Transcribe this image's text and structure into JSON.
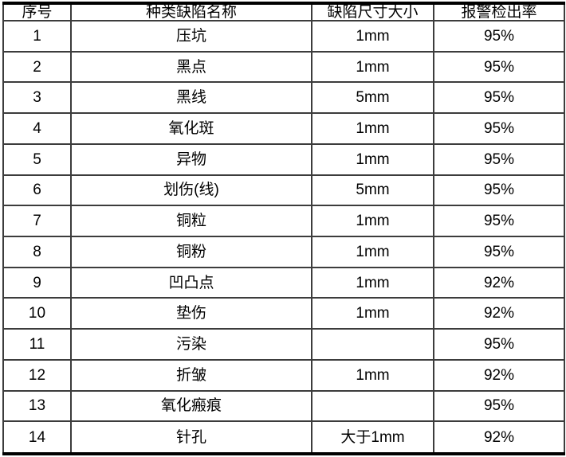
{
  "table": {
    "title": "defect-detection-rate-table",
    "headers": [
      "序号",
      "种类缺陷名称",
      "缺陷尺寸大小",
      "报警检出率"
    ],
    "rows": [
      {
        "no": "1",
        "name": "压坑",
        "size": "1mm",
        "rate": "95%"
      },
      {
        "no": "2",
        "name": "黑点",
        "size": "1mm",
        "rate": "95%"
      },
      {
        "no": "3",
        "name": "黑线",
        "size": "5mm",
        "rate": "95%"
      },
      {
        "no": "4",
        "name": "氧化斑",
        "size": "1mm",
        "rate": "95%"
      },
      {
        "no": "5",
        "name": "异物",
        "size": "1mm",
        "rate": "95%"
      },
      {
        "no": "6",
        "name": "划伤(线)",
        "size": "5mm",
        "rate": "95%"
      },
      {
        "no": "7",
        "name": "铜粒",
        "size": "1mm",
        "rate": "95%"
      },
      {
        "no": "8",
        "name": "铜粉",
        "size": "1mm",
        "rate": "95%"
      },
      {
        "no": "9",
        "name": "凹凸点",
        "size": "1mm",
        "rate": "92%"
      },
      {
        "no": "10",
        "name": "垫伤",
        "size": "1mm",
        "rate": "92%"
      },
      {
        "no": "11",
        "name": "污染",
        "size": "",
        "rate": "95%"
      },
      {
        "no": "12",
        "name": "折皱",
        "size": "1mm",
        "rate": "92%"
      },
      {
        "no": "13",
        "name": "氧化瘢痕",
        "size": "",
        "rate": "95%"
      },
      {
        "no": "14",
        "name": "针孔",
        "size": "大于1mm",
        "rate": "92%"
      }
    ]
  },
  "colors": {
    "background": "#ffffff",
    "grid_line": "#3c3c3c",
    "outer_border": "#000000",
    "text": "#000000"
  }
}
